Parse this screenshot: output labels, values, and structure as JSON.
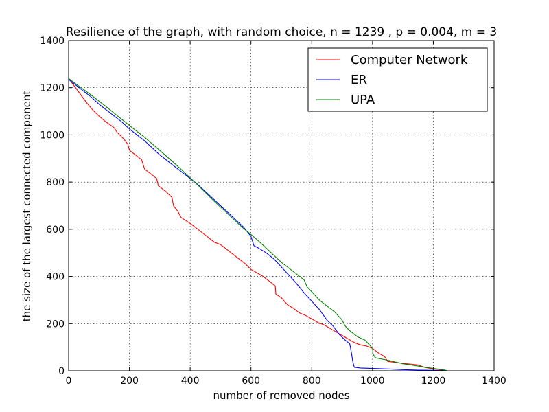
{
  "chart_data": {
    "type": "line",
    "title": "Resilience of the graph, with random choice, n = 1239 , p = 0.004, m = 3",
    "xlabel": "number of removed nodes",
    "ylabel": "the size of the largest connected component",
    "xlim": [
      0,
      1400
    ],
    "ylim": [
      0,
      1400
    ],
    "xticks": [
      0,
      200,
      400,
      600,
      800,
      1000,
      1200,
      1400
    ],
    "yticks": [
      0,
      200,
      400,
      600,
      800,
      1000,
      1200,
      1400
    ],
    "grid": true,
    "legend_position": "top-right",
    "series": [
      {
        "name": "Computer Network",
        "color": "#ff0000",
        "points": [
          [
            0,
            1239
          ],
          [
            20,
            1205
          ],
          [
            40,
            1170
          ],
          [
            60,
            1135
          ],
          [
            80,
            1105
          ],
          [
            100,
            1080
          ],
          [
            120,
            1058
          ],
          [
            150,
            1030
          ],
          [
            160,
            1010
          ],
          [
            180,
            985
          ],
          [
            195,
            960
          ],
          [
            200,
            935
          ],
          [
            220,
            915
          ],
          [
            240,
            895
          ],
          [
            250,
            855
          ],
          [
            270,
            835
          ],
          [
            290,
            815
          ],
          [
            295,
            785
          ],
          [
            320,
            760
          ],
          [
            340,
            735
          ],
          [
            345,
            700
          ],
          [
            360,
            675
          ],
          [
            370,
            650
          ],
          [
            400,
            625
          ],
          [
            420,
            605
          ],
          [
            440,
            585
          ],
          [
            460,
            565
          ],
          [
            480,
            545
          ],
          [
            500,
            535
          ],
          [
            520,
            515
          ],
          [
            540,
            495
          ],
          [
            560,
            475
          ],
          [
            580,
            455
          ],
          [
            600,
            430
          ],
          [
            620,
            415
          ],
          [
            640,
            400
          ],
          [
            660,
            380
          ],
          [
            680,
            360
          ],
          [
            682,
            325
          ],
          [
            700,
            310
          ],
          [
            720,
            280
          ],
          [
            740,
            265
          ],
          [
            760,
            245
          ],
          [
            780,
            235
          ],
          [
            800,
            220
          ],
          [
            820,
            205
          ],
          [
            840,
            195
          ],
          [
            860,
            180
          ],
          [
            880,
            165
          ],
          [
            900,
            150
          ],
          [
            920,
            135
          ],
          [
            940,
            120
          ],
          [
            960,
            110
          ],
          [
            980,
            105
          ],
          [
            1000,
            95
          ],
          [
            1020,
            75
          ],
          [
            1040,
            60
          ],
          [
            1050,
            40
          ],
          [
            1100,
            32
          ],
          [
            1150,
            25
          ],
          [
            1170,
            15
          ],
          [
            1200,
            8
          ],
          [
            1240,
            2
          ]
        ]
      },
      {
        "name": "ER",
        "color": "#0000ff",
        "points": [
          [
            0,
            1235
          ],
          [
            25,
            1210
          ],
          [
            50,
            1185
          ],
          [
            75,
            1160
          ],
          [
            100,
            1130
          ],
          [
            125,
            1105
          ],
          [
            150,
            1080
          ],
          [
            175,
            1055
          ],
          [
            200,
            1025
          ],
          [
            225,
            1000
          ],
          [
            250,
            975
          ],
          [
            275,
            945
          ],
          [
            300,
            915
          ],
          [
            325,
            890
          ],
          [
            350,
            865
          ],
          [
            375,
            840
          ],
          [
            400,
            815
          ],
          [
            425,
            790
          ],
          [
            450,
            760
          ],
          [
            475,
            730
          ],
          [
            500,
            700
          ],
          [
            525,
            670
          ],
          [
            550,
            640
          ],
          [
            575,
            610
          ],
          [
            600,
            570
          ],
          [
            610,
            530
          ],
          [
            625,
            520
          ],
          [
            650,
            500
          ],
          [
            675,
            475
          ],
          [
            700,
            440
          ],
          [
            725,
            405
          ],
          [
            750,
            370
          ],
          [
            775,
            330
          ],
          [
            800,
            295
          ],
          [
            825,
            260
          ],
          [
            850,
            215
          ],
          [
            870,
            190
          ],
          [
            890,
            155
          ],
          [
            910,
            130
          ],
          [
            925,
            115
          ],
          [
            930,
            80
          ],
          [
            935,
            40
          ],
          [
            940,
            15
          ],
          [
            960,
            12
          ],
          [
            1000,
            10
          ],
          [
            1050,
            8
          ],
          [
            1100,
            5
          ],
          [
            1150,
            3
          ],
          [
            1200,
            2
          ],
          [
            1240,
            1
          ]
        ]
      },
      {
        "name": "UPA",
        "color": "#008000",
        "points": [
          [
            0,
            1239
          ],
          [
            25,
            1215
          ],
          [
            50,
            1192
          ],
          [
            75,
            1168
          ],
          [
            100,
            1143
          ],
          [
            125,
            1118
          ],
          [
            150,
            1092
          ],
          [
            175,
            1066
          ],
          [
            200,
            1040
          ],
          [
            225,
            1015
          ],
          [
            250,
            990
          ],
          [
            275,
            962
          ],
          [
            300,
            934
          ],
          [
            325,
            906
          ],
          [
            350,
            878
          ],
          [
            375,
            848
          ],
          [
            400,
            818
          ],
          [
            425,
            788
          ],
          [
            450,
            756
          ],
          [
            475,
            724
          ],
          [
            500,
            694
          ],
          [
            525,
            664
          ],
          [
            550,
            634
          ],
          [
            575,
            604
          ],
          [
            600,
            578
          ],
          [
            625,
            550
          ],
          [
            650,
            520
          ],
          [
            675,
            490
          ],
          [
            700,
            460
          ],
          [
            725,
            435
          ],
          [
            750,
            410
          ],
          [
            775,
            385
          ],
          [
            785,
            355
          ],
          [
            800,
            335
          ],
          [
            825,
            300
          ],
          [
            850,
            275
          ],
          [
            875,
            250
          ],
          [
            900,
            215
          ],
          [
            910,
            190
          ],
          [
            925,
            170
          ],
          [
            950,
            145
          ],
          [
            975,
            130
          ],
          [
            990,
            110
          ],
          [
            1000,
            95
          ],
          [
            1002,
            70
          ],
          [
            1010,
            55
          ],
          [
            1050,
            45
          ],
          [
            1100,
            30
          ],
          [
            1150,
            20
          ],
          [
            1200,
            10
          ],
          [
            1230,
            5
          ],
          [
            1245,
            1
          ]
        ]
      }
    ]
  }
}
